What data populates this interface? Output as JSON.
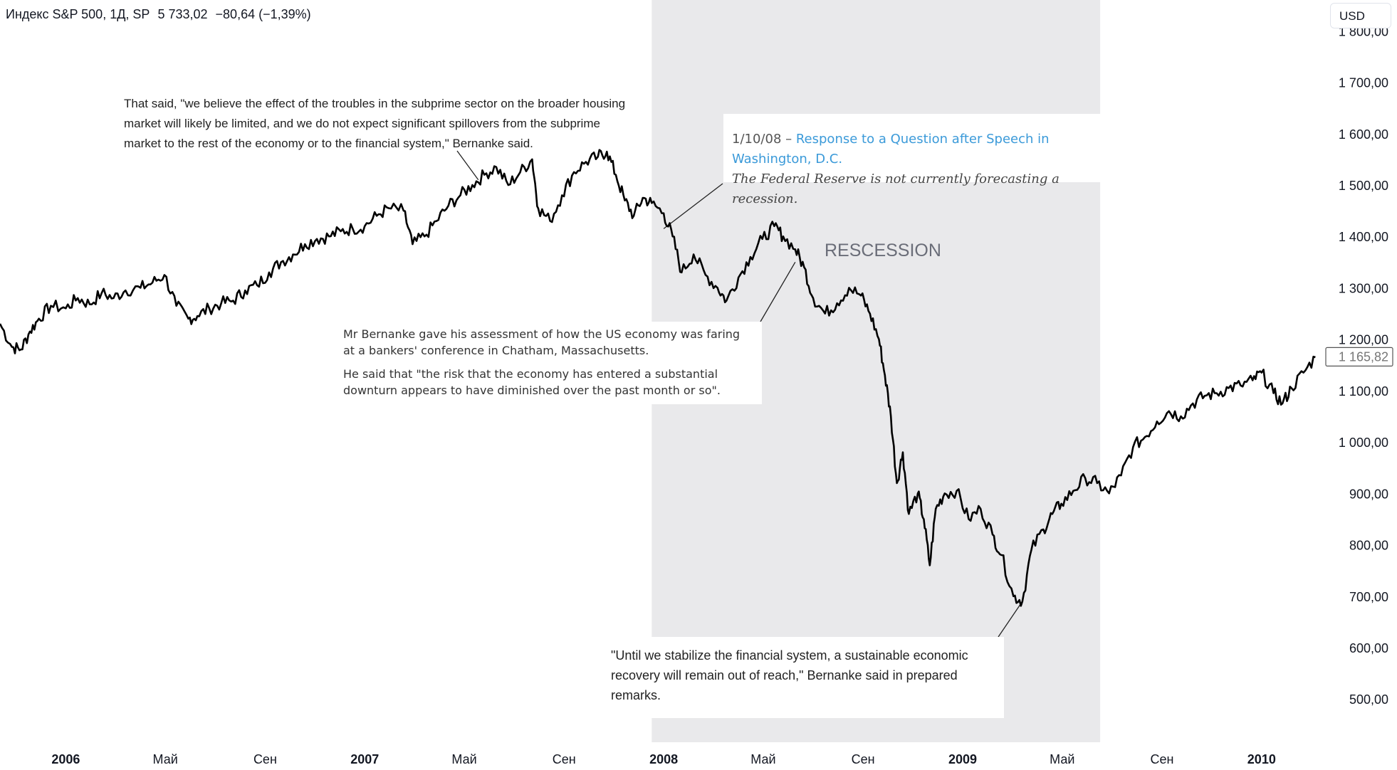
{
  "header": {
    "symbol": "Индекс S&P 500, 1Д, SP",
    "price": "5 733,02",
    "change": "−80,64 (−1,39%)"
  },
  "currency_label": "USD",
  "colors": {
    "line": "#000000",
    "recession_band": "#e9e9eb",
    "axis_text": "#131722",
    "link": "#3b9ad9"
  },
  "chart_data": {
    "type": "line",
    "title": "",
    "xlabel": "",
    "ylabel": "",
    "x_start": "2005-10",
    "x_end": "2010-04",
    "ylim": [
      420,
      1860
    ],
    "y_ticks": [
      {
        "value": 500,
        "label": "500,00"
      },
      {
        "value": 600,
        "label": "600,00"
      },
      {
        "value": 700,
        "label": "700,00"
      },
      {
        "value": 800,
        "label": "800,00"
      },
      {
        "value": 900,
        "label": "900,00"
      },
      {
        "value": 1000,
        "label": "1 000,00"
      },
      {
        "value": 1100,
        "label": "1 100,00"
      },
      {
        "value": 1200,
        "label": "1 200,00"
      },
      {
        "value": 1300,
        "label": "1 300,00"
      },
      {
        "value": 1400,
        "label": "1 400,00"
      },
      {
        "value": 1500,
        "label": "1 500,00"
      },
      {
        "value": 1600,
        "label": "1 600,00"
      },
      {
        "value": 1700,
        "label": "1 700,00"
      },
      {
        "value": 1800,
        "label": "1 800,00"
      }
    ],
    "x_ticks": [
      {
        "t": 2006.0,
        "label": "2006",
        "bold": true
      },
      {
        "t": 2006.333,
        "label": "Май",
        "bold": false
      },
      {
        "t": 2006.667,
        "label": "Сен",
        "bold": false
      },
      {
        "t": 2007.0,
        "label": "2007",
        "bold": true
      },
      {
        "t": 2007.333,
        "label": "Май",
        "bold": false
      },
      {
        "t": 2007.667,
        "label": "Сен",
        "bold": false
      },
      {
        "t": 2008.0,
        "label": "2008",
        "bold": true
      },
      {
        "t": 2008.333,
        "label": "Май",
        "bold": false
      },
      {
        "t": 2008.667,
        "label": "Сен",
        "bold": false
      },
      {
        "t": 2009.0,
        "label": "2009",
        "bold": true
      },
      {
        "t": 2009.333,
        "label": "Май",
        "bold": false
      },
      {
        "t": 2009.667,
        "label": "Сен",
        "bold": false
      },
      {
        "t": 2010.0,
        "label": "2010",
        "bold": true
      }
    ],
    "last_value": 1165.82,
    "last_value_label": "1 165,82",
    "recession": {
      "start": 2007.96,
      "end": 2009.46,
      "label": "RESCESSION"
    },
    "series": [
      {
        "points": [
          [
            2005.78,
            1230
          ],
          [
            2005.82,
            1185
          ],
          [
            2005.85,
            1180
          ],
          [
            2005.88,
            1215
          ],
          [
            2005.91,
            1240
          ],
          [
            2005.95,
            1265
          ],
          [
            2006.0,
            1260
          ],
          [
            2006.04,
            1280
          ],
          [
            2006.08,
            1268
          ],
          [
            2006.12,
            1290
          ],
          [
            2006.16,
            1280
          ],
          [
            2006.2,
            1295
          ],
          [
            2006.25,
            1300
          ],
          [
            2006.29,
            1310
          ],
          [
            2006.33,
            1325
          ],
          [
            2006.37,
            1265
          ],
          [
            2006.41,
            1240
          ],
          [
            2006.44,
            1245
          ],
          [
            2006.48,
            1260
          ],
          [
            2006.52,
            1270
          ],
          [
            2006.56,
            1275
          ],
          [
            2006.6,
            1295
          ],
          [
            2006.64,
            1305
          ],
          [
            2006.68,
            1330
          ],
          [
            2006.72,
            1350
          ],
          [
            2006.76,
            1365
          ],
          [
            2006.8,
            1385
          ],
          [
            2006.84,
            1395
          ],
          [
            2006.88,
            1400
          ],
          [
            2006.92,
            1410
          ],
          [
            2006.96,
            1415
          ],
          [
            2007.0,
            1420
          ],
          [
            2007.04,
            1440
          ],
          [
            2007.08,
            1455
          ],
          [
            2007.13,
            1450
          ],
          [
            2007.16,
            1385
          ],
          [
            2007.2,
            1400
          ],
          [
            2007.24,
            1430
          ],
          [
            2007.28,
            1460
          ],
          [
            2007.32,
            1480
          ],
          [
            2007.36,
            1500
          ],
          [
            2007.4,
            1520
          ],
          [
            2007.44,
            1535
          ],
          [
            2007.48,
            1500
          ],
          [
            2007.52,
            1525
          ],
          [
            2007.56,
            1550
          ],
          [
            2007.58,
            1455
          ],
          [
            2007.62,
            1430
          ],
          [
            2007.66,
            1480
          ],
          [
            2007.7,
            1525
          ],
          [
            2007.74,
            1545
          ],
          [
            2007.78,
            1555
          ],
          [
            2007.81,
            1565
          ],
          [
            2007.84,
            1520
          ],
          [
            2007.87,
            1470
          ],
          [
            2007.9,
            1440
          ],
          [
            2007.93,
            1475
          ],
          [
            2007.96,
            1465
          ],
          [
            2008.0,
            1445
          ],
          [
            2008.03,
            1400
          ],
          [
            2008.06,
            1330
          ],
          [
            2008.1,
            1365
          ],
          [
            2008.14,
            1325
          ],
          [
            2008.18,
            1300
          ],
          [
            2008.21,
            1275
          ],
          [
            2008.25,
            1320
          ],
          [
            2008.29,
            1360
          ],
          [
            2008.33,
            1395
          ],
          [
            2008.37,
            1420
          ],
          [
            2008.4,
            1400
          ],
          [
            2008.44,
            1375
          ],
          [
            2008.47,
            1340
          ],
          [
            2008.5,
            1280
          ],
          [
            2008.54,
            1250
          ],
          [
            2008.58,
            1270
          ],
          [
            2008.62,
            1300
          ],
          [
            2008.66,
            1285
          ],
          [
            2008.69,
            1250
          ],
          [
            2008.72,
            1200
          ],
          [
            2008.74,
            1130
          ],
          [
            2008.76,
            1050
          ],
          [
            2008.78,
            920
          ],
          [
            2008.8,
            980
          ],
          [
            2008.82,
            860
          ],
          [
            2008.85,
            900
          ],
          [
            2008.87,
            850
          ],
          [
            2008.89,
            760
          ],
          [
            2008.91,
            870
          ],
          [
            2008.94,
            900
          ],
          [
            2008.98,
            905
          ],
          [
            2009.02,
            850
          ],
          [
            2009.06,
            870
          ],
          [
            2009.1,
            820
          ],
          [
            2009.13,
            780
          ],
          [
            2009.17,
            700
          ],
          [
            2009.2,
            690
          ],
          [
            2009.23,
            790
          ],
          [
            2009.27,
            830
          ],
          [
            2009.3,
            860
          ],
          [
            2009.33,
            880
          ],
          [
            2009.37,
            905
          ],
          [
            2009.41,
            930
          ],
          [
            2009.45,
            920
          ],
          [
            2009.49,
            900
          ],
          [
            2009.53,
            935
          ],
          [
            2009.57,
            990
          ],
          [
            2009.61,
            1010
          ],
          [
            2009.65,
            1040
          ],
          [
            2009.69,
            1060
          ],
          [
            2009.73,
            1050
          ],
          [
            2009.77,
            1075
          ],
          [
            2009.81,
            1090
          ],
          [
            2009.85,
            1095
          ],
          [
            2009.89,
            1105
          ],
          [
            2009.93,
            1110
          ],
          [
            2009.97,
            1120
          ],
          [
            2010.0,
            1135
          ],
          [
            2010.04,
            1095
          ],
          [
            2010.07,
            1075
          ],
          [
            2010.1,
            1105
          ],
          [
            2010.14,
            1135
          ],
          [
            2010.18,
            1165
          ]
        ]
      }
    ],
    "annotations": [
      {
        "text_key": "subprime",
        "point": [
          2007.38,
          1510
        ]
      },
      {
        "text_key": "fed",
        "point": [
          2008.0,
          1415
        ]
      },
      {
        "text_key": "chatham",
        "point": [
          2008.44,
          1350
        ]
      },
      {
        "text_key": "stabilize",
        "point": [
          2009.2,
          690
        ]
      }
    ]
  },
  "annotations": {
    "subprime": "That said, \"we believe the effect of the troubles in the subprime sector on the broader housing market will likely be limited, and we do not expect significant spillovers from the subprime market to the rest of the economy or to the financial system,\" Bernanke said.",
    "fed": {
      "date": "1/10/08 –",
      "link": "Response to a Question after Speech in Washington, D.C.",
      "quote": "The Federal Reserve is not currently forecasting a recession."
    },
    "chatham": {
      "p1": "Mr Bernanke gave his assessment of how the US economy was faring at a bankers' conference in Chatham, Massachusetts.",
      "p2": "He said that \"the risk that the economy has entered a substantial downturn appears to have diminished over the past month or so\"."
    },
    "stabilize": "\"Until we stabilize the financial system, a sustainable economic recovery will remain out of reach,\" Bernanke said in prepared remarks."
  }
}
